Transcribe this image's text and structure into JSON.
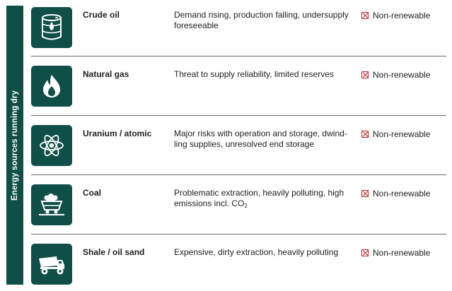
{
  "sidebar": {
    "title": "Energy sources running dry"
  },
  "rows": [
    {
      "name": "Crude oil",
      "description": "Demand rising, production falling, undersupply foreseeable",
      "status": "Non-renewable",
      "icon": "oil-barrel-icon"
    },
    {
      "name": "Natural gas",
      "description": "Threat to supply reliability, limited reserves",
      "status": "Non-renewable",
      "icon": "flame-icon"
    },
    {
      "name": "Uranium / atomic",
      "description": "Major risks with operation and storage, dwind-ling supplies, unresolved end storage",
      "status": "Non-renewable",
      "icon": "atom-icon"
    },
    {
      "name": "Coal",
      "description_prefix": "Problematic extraction, heavily polluting, high emissions incl. CO",
      "description_sub": "2",
      "status": "Non-renewable",
      "icon": "coal-cart-icon"
    },
    {
      "name": "Shale / oil sand",
      "description": "Expensive, dirty extraction, heavily polluting",
      "status": "Non-renewable",
      "icon": "dump-truck-icon"
    }
  ],
  "colors": {
    "brand": "#0f4f47",
    "cross": "#c0272d",
    "divider": "#6e6e6e"
  }
}
